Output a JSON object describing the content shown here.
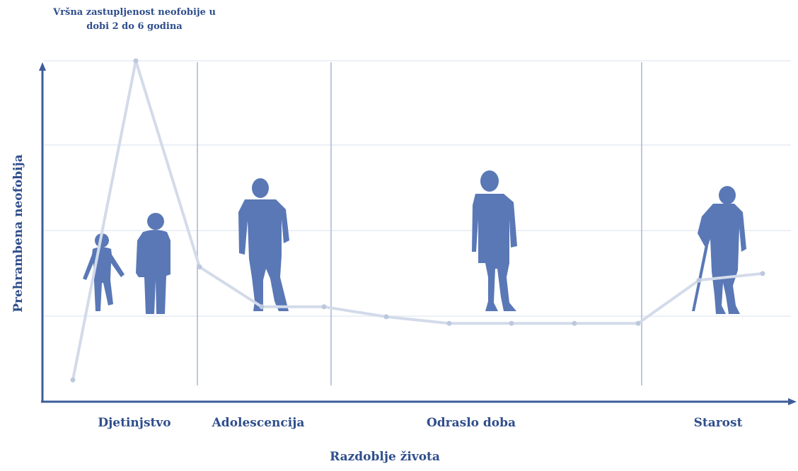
{
  "chart_data": {
    "type": "line",
    "annotation": "Vršna zastupljenost neofobije u dobi 2 do 6 godina",
    "ylabel": "Prehrambena neofobija",
    "xlabel": "Razdoblje života",
    "periods": [
      "Djetinjstvo",
      "Adolescencija",
      "Odraslo doba",
      "Starost"
    ],
    "grid": true,
    "series": [
      {
        "values": [
          4,
          100,
          38,
          26,
          26,
          23,
          21,
          21,
          21,
          21,
          34,
          36
        ]
      }
    ],
    "colors": {
      "line": "#d3dbea",
      "marker": "#bcc8de",
      "axis": "#3d5c9b",
      "grid": "#e6ebf3",
      "divider": "#a9b6d0",
      "figure": "#5a78b6",
      "text": "#2f4e8c"
    },
    "icons": [
      "toddler-icon",
      "child-icon",
      "teenager-icon",
      "adult-man-icon",
      "elderly-man-with-cane-icon"
    ]
  }
}
